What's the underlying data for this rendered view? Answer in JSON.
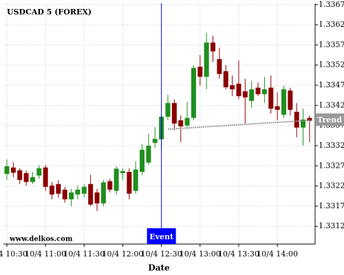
{
  "chart_data": {
    "type": "candlestick",
    "title": "USDCAD 5 (FOREX)",
    "watermark": "www.delkos.com",
    "x_label": "Date",
    "x": [
      "10/4 10:30",
      "10/4 10:35",
      "10/4 10:40",
      "10/4 10:45",
      "10/4 10:50",
      "10/4 10:55",
      "10/4 11:00",
      "10/4 11:05",
      "10/4 11:10",
      "10/4 11:15",
      "10/4 11:20",
      "10/4 11:25",
      "10/4 11:30",
      "10/4 11:35",
      "10/4 11:40",
      "10/4 11:45",
      "10/4 11:50",
      "10/4 11:55",
      "10/4 12:00",
      "10/4 12:05",
      "10/4 12:10",
      "10/4 12:15",
      "10/4 12:20",
      "10/4 12:25",
      "10/4 12:30",
      "10/4 12:35",
      "10/4 12:40",
      "10/4 12:45",
      "10/4 12:50",
      "10/4 12:55",
      "10/4 13:00",
      "10/4 13:05",
      "10/4 13:10",
      "10/4 13:15",
      "10/4 13:20",
      "10/4 13:25",
      "10/4 13:30",
      "10/4 13:35",
      "10/4 13:40",
      "10/4 13:45",
      "10/4 13:50",
      "10/4 13:55",
      "10/4 14:00",
      "10/4 14:05",
      "10/4 14:10",
      "10/4 14:15",
      "10/4 14:20",
      "10/4 14:25"
    ],
    "open": [
      1.3325,
      1.33266,
      1.33259,
      1.33252,
      1.3323,
      1.33246,
      1.33266,
      1.33221,
      1.33225,
      1.33211,
      1.33187,
      1.33199,
      1.33201,
      1.33225,
      1.33204,
      1.33177,
      1.33232,
      1.33208,
      1.33252,
      1.33255,
      1.33208,
      1.33255,
      1.33278,
      1.33327,
      1.33336,
      1.33392,
      1.33426,
      1.33383,
      1.3337,
      1.33389,
      1.33516,
      1.33491,
      1.33576,
      1.33535,
      1.33505,
      1.3347,
      1.33474,
      1.33455,
      1.33431,
      1.33464,
      1.33448,
      1.33464,
      1.33418,
      1.33397,
      1.33457,
      1.33404,
      1.33365,
      1.33389
    ],
    "high": [
      1.33286,
      1.33279,
      1.33264,
      1.33259,
      1.33255,
      1.33272,
      1.33272,
      1.3323,
      1.33235,
      1.33218,
      1.33213,
      1.33221,
      1.33225,
      1.33248,
      1.33213,
      1.33235,
      1.33238,
      1.33269,
      1.33264,
      1.33264,
      1.33281,
      1.33324,
      1.33349,
      1.33366,
      1.334,
      1.33447,
      1.33435,
      1.33395,
      1.33429,
      1.3352,
      1.33545,
      1.336,
      1.33593,
      1.33563,
      1.3352,
      1.33494,
      1.33532,
      1.33486,
      1.33481,
      1.33477,
      1.33491,
      1.33494,
      1.33452,
      1.33469,
      1.33464,
      1.33426,
      1.33412,
      1.33395
    ],
    "low": [
      1.33235,
      1.33242,
      1.33225,
      1.33221,
      1.33225,
      1.33238,
      1.33208,
      1.33187,
      1.33191,
      1.33179,
      1.3317,
      1.33187,
      1.33192,
      1.3317,
      1.33158,
      1.3317,
      1.33204,
      1.33199,
      1.33235,
      1.33187,
      1.33201,
      1.33247,
      1.33272,
      1.33315,
      1.3331,
      1.33383,
      1.33358,
      1.33329,
      1.33361,
      1.33383,
      1.33469,
      1.3346,
      1.33528,
      1.33486,
      1.3346,
      1.33443,
      1.33435,
      1.33375,
      1.33414,
      1.33443,
      1.33426,
      1.334,
      1.33383,
      1.33389,
      1.33395,
      1.33341,
      1.3332,
      1.33329
    ],
    "close": [
      1.33269,
      1.33253,
      1.33235,
      1.3323,
      1.33242,
      1.33264,
      1.33218,
      1.33199,
      1.33201,
      1.33187,
      1.33204,
      1.33211,
      1.33218,
      1.33174,
      1.33177,
      1.33229,
      1.33211,
      1.33263,
      1.33257,
      1.33201,
      1.33261,
      1.3331,
      1.3332,
      1.33337,
      1.33392,
      1.33426,
      1.33375,
      1.33368,
      1.33389,
      1.33513,
      1.33491,
      1.33576,
      1.33554,
      1.33498,
      1.33465,
      1.3346,
      1.33443,
      1.3344,
      1.3346,
      1.33448,
      1.3346,
      1.33412,
      1.33409,
      1.3346,
      1.33409,
      1.33365,
      1.33385,
      1.33382
    ],
    "up_color": "#1f8f1f",
    "down_color": "#8b0000",
    "ylim": [
      1.33076,
      1.33673
    ],
    "yticks": [
      1.3312,
      1.3317,
      1.3322,
      1.3327,
      1.3332,
      1.3337,
      1.3342,
      1.3347,
      1.3352,
      1.3357,
      1.3362,
      1.3367
    ],
    "xticks": [
      "10/4 10:30",
      "10/4 11:00",
      "10/4 11:30",
      "10/4 12:00",
      "10/4 12:30",
      "10/4 13:00",
      "10/4 13:30",
      "10/4 14:00"
    ],
    "grid": true,
    "trend": {
      "name": "Trend",
      "color": "#999999",
      "x": [
        "10/4 12:35",
        "10/4 14:25"
      ],
      "values": [
        1.33361,
        1.33383
      ]
    },
    "event": {
      "x": "10/4 12:30",
      "label": "Event",
      "color": "#0000ff"
    }
  }
}
